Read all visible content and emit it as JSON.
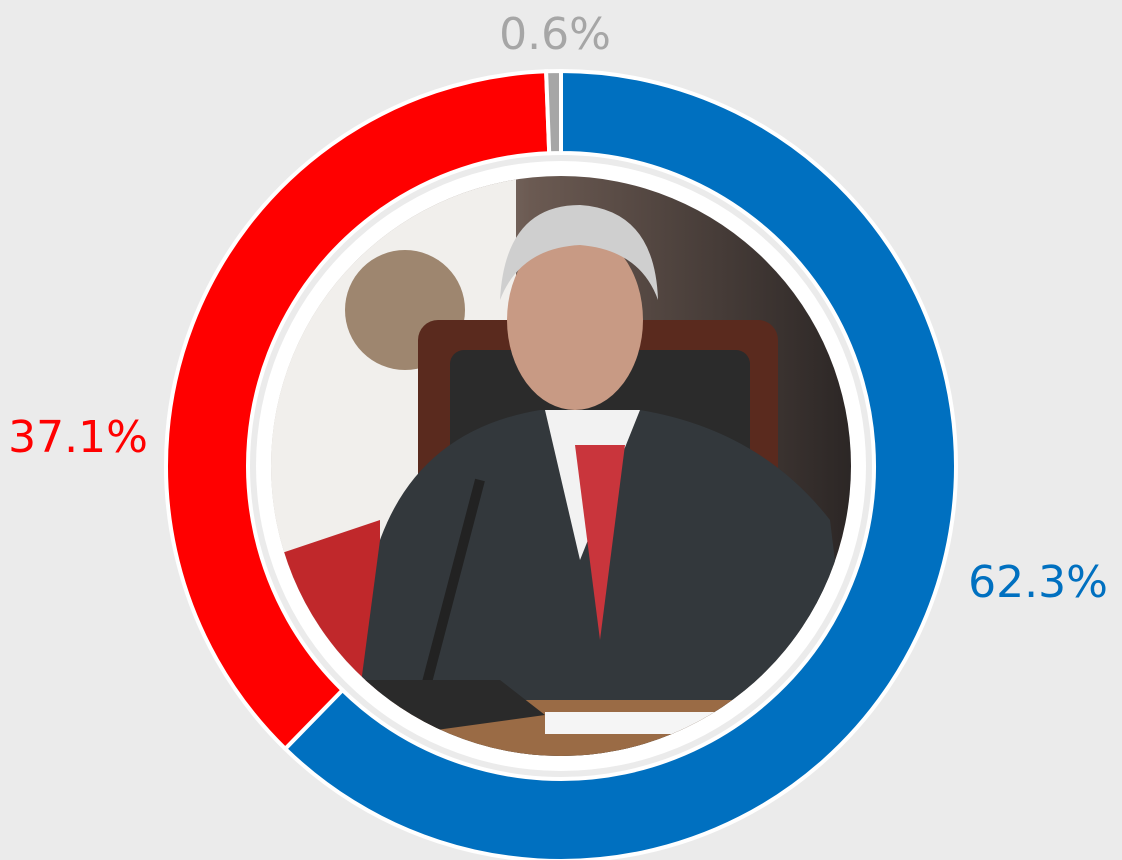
{
  "chart_data": {
    "type": "pie",
    "donut": true,
    "categories": [
      null,
      null,
      null
    ],
    "values": [
      62.3,
      37.1,
      0.6
    ],
    "value_labels": [
      "62.3%",
      "37.1%",
      "0.6%"
    ],
    "colors": [
      "#0070c0",
      "#ff0000",
      "#a6a6a6"
    ]
  }
}
